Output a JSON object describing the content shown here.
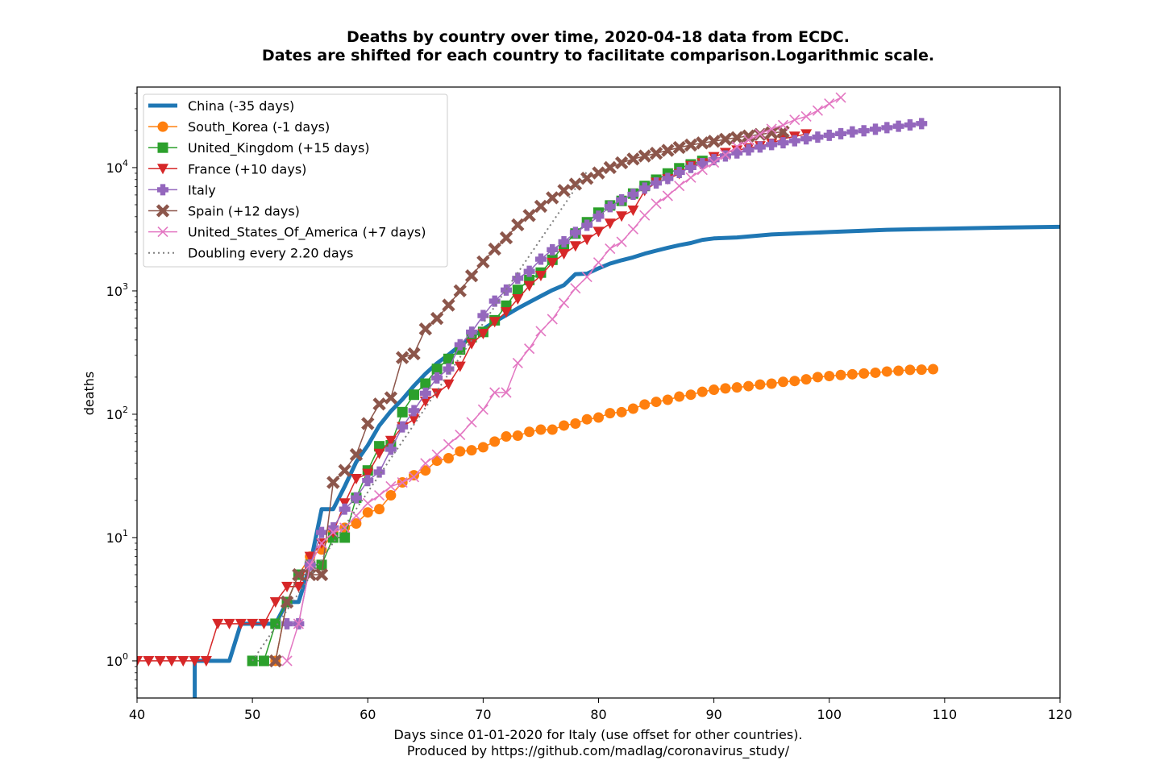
{
  "chart_data": {
    "type": "line",
    "title": "Deaths by country over time, 2020-04-18 data from ECDC.",
    "subtitle": "Dates are shifted for each country to facilitate comparison.Logarithmic scale.",
    "xlabel": "Days since 01-01-2020 for Italy (use offset for other countries).",
    "xlabel2": "Produced by https://github.com/madlag/coronavirus_study/",
    "ylabel": "deaths",
    "xlim": [
      40,
      120
    ],
    "ylim": [
      0.5,
      45000
    ],
    "yscale": "log",
    "grid": false,
    "legend_position": "top-left",
    "x_ticks": [
      "40",
      "50",
      "60",
      "70",
      "80",
      "90",
      "100",
      "110",
      "120"
    ],
    "y_ticks": [
      {
        "base": "10",
        "exp": "0"
      },
      {
        "base": "10",
        "exp": "1"
      },
      {
        "base": "10",
        "exp": "2"
      },
      {
        "base": "10",
        "exp": "3"
      },
      {
        "base": "10",
        "exp": "4"
      }
    ],
    "series": [
      {
        "name": "China (-35 days)",
        "color": "#1f77b4",
        "marker": "none",
        "width": 5,
        "x": [
          45,
          45,
          46,
          47,
          48,
          49,
          50,
          51,
          52,
          53,
          54,
          55,
          56,
          57,
          58,
          59,
          60,
          61,
          62,
          63,
          64,
          65,
          66,
          67,
          68,
          69,
          70,
          71,
          72,
          73,
          74,
          75,
          76,
          77,
          78,
          79,
          80,
          81,
          82,
          83,
          84,
          85,
          86,
          87,
          88,
          89,
          90,
          92,
          95,
          100,
          105,
          110,
          115,
          120
        ],
        "y": [
          0.5,
          1,
          1,
          1,
          1,
          2,
          2,
          2,
          2,
          3,
          3,
          6,
          17,
          17,
          26,
          41,
          56,
          81,
          106,
          132,
          170,
          213,
          259,
          304,
          361,
          425,
          490,
          563,
          636,
          722,
          811,
          908,
          1016,
          1113,
          1368,
          1381,
          1524,
          1666,
          1772,
          1870,
          2006,
          2121,
          2239,
          2348,
          2445,
          2595,
          2665,
          2715,
          2870,
          3000,
          3130,
          3200,
          3260,
          3310
        ]
      },
      {
        "name": "South_Korea (-1 days)",
        "color": "#ff7f0e",
        "marker": "circle",
        "width": 1.5,
        "x": [
          52,
          53,
          54,
          55,
          56,
          57,
          58,
          59,
          60,
          61,
          62,
          63,
          64,
          65,
          66,
          67,
          68,
          69,
          70,
          71,
          72,
          73,
          74,
          75,
          76,
          77,
          78,
          79,
          80,
          81,
          82,
          83,
          84,
          85,
          86,
          87,
          88,
          89,
          90,
          91,
          92,
          93,
          94,
          95,
          96,
          97,
          98,
          99,
          100,
          101,
          102,
          103,
          104,
          105,
          106,
          107,
          108,
          109
        ],
        "y": [
          1,
          3,
          5,
          7,
          8,
          11,
          12,
          13,
          16,
          17,
          22,
          28,
          32,
          35,
          42,
          44,
          50,
          51,
          54,
          60,
          66,
          67,
          72,
          75,
          75,
          81,
          84,
          91,
          94,
          102,
          104,
          111,
          120,
          126,
          131,
          139,
          144,
          152,
          158,
          162,
          165,
          169,
          174,
          177,
          183,
          186,
          192,
          200,
          204,
          208,
          211,
          214,
          217,
          222,
          225,
          229,
          230,
          232
        ]
      },
      {
        "name": "United_Kingdom (+15 days)",
        "color": "#2ca02c",
        "marker": "square",
        "width": 1.5,
        "x": [
          50,
          51,
          52,
          53,
          54,
          55,
          56,
          57,
          58,
          59,
          60,
          61,
          62,
          63,
          64,
          65,
          66,
          67,
          68,
          69,
          70,
          71,
          72,
          73,
          74,
          75,
          76,
          77,
          78,
          79,
          80,
          81,
          82,
          83,
          84,
          85,
          86,
          87,
          88,
          89
        ],
        "y": [
          1,
          1,
          2,
          3,
          5,
          6,
          6,
          10,
          10,
          21,
          35,
          55,
          56,
          104,
          144,
          177,
          233,
          281,
          335,
          422,
          465,
          578,
          759,
          1019,
          1228,
          1408,
          1789,
          2352,
          2921,
          3605,
          4313,
          4934,
          5373,
          6159,
          7097,
          7978,
          8958,
          9875,
          10612,
          11329
        ]
      },
      {
        "name": "France (+10 days)",
        "color": "#d62728",
        "marker": "triangle-down",
        "width": 1.5,
        "x": [
          40,
          41,
          42,
          43,
          44,
          45,
          46,
          47,
          48,
          49,
          50,
          51,
          52,
          53,
          54,
          55,
          56,
          57,
          58,
          59,
          60,
          61,
          62,
          63,
          64,
          65,
          66,
          67,
          68,
          69,
          70,
          71,
          72,
          73,
          74,
          75,
          76,
          77,
          78,
          79,
          80,
          81,
          82,
          83,
          84,
          85,
          86,
          87,
          88,
          89,
          90,
          91,
          92,
          93,
          94,
          95,
          96,
          97,
          98
        ],
        "y": [
          1,
          1,
          1,
          1,
          1,
          1,
          1,
          2,
          2,
          2,
          2,
          2,
          3,
          4,
          4,
          7,
          9,
          11,
          19,
          30,
          33,
          48,
          61,
          79,
          91,
          127,
          148,
          175,
          244,
          372,
          450,
          562,
          674,
          860,
          1100,
          1331,
          1696,
          1995,
          2314,
          2606,
          3024,
          3523,
          4032,
          4503,
          6507,
          7560,
          8078,
          8911,
          10328,
          10869,
          12210,
          13197,
          13832,
          14393,
          14967,
          15712,
          17148,
          17901,
          18681
        ]
      },
      {
        "name": "Italy",
        "color": "#9467bd",
        "marker": "plus",
        "width": 1.5,
        "x": [
          53,
          54,
          55,
          56,
          57,
          58,
          59,
          60,
          61,
          62,
          63,
          64,
          65,
          66,
          67,
          68,
          69,
          70,
          71,
          72,
          73,
          74,
          75,
          76,
          77,
          78,
          79,
          80,
          81,
          82,
          83,
          84,
          85,
          86,
          87,
          88,
          89,
          90,
          91,
          92,
          93,
          94,
          95,
          96,
          97,
          98,
          99,
          100,
          101,
          102,
          103,
          104,
          105,
          106,
          107,
          108
        ],
        "y": [
          2,
          2,
          6,
          11,
          12,
          17,
          21,
          29,
          34,
          52,
          79,
          107,
          148,
          197,
          233,
          366,
          463,
          631,
          827,
          1016,
          1266,
          1441,
          1809,
          2158,
          2503,
          2978,
          3405,
          4032,
          4825,
          5476,
          6077,
          6820,
          7503,
          8165,
          9134,
          10023,
          10779,
          11591,
          12428,
          13155,
          13915,
          14681,
          15362,
          15887,
          16523,
          17127,
          17669,
          18279,
          18849,
          19468,
          19899,
          20465,
          21067,
          21645,
          22170,
          22745
        ]
      },
      {
        "name": "Spain (+12 days)",
        "color": "#8c564b",
        "marker": "x-thick",
        "width": 1.5,
        "x": [
          52,
          53,
          54,
          55,
          56,
          57,
          58,
          59,
          60,
          61,
          62,
          63,
          64,
          65,
          66,
          67,
          68,
          69,
          70,
          71,
          72,
          73,
          74,
          75,
          76,
          77,
          78,
          79,
          80,
          81,
          82,
          83,
          84,
          85,
          86,
          87,
          88,
          89,
          90,
          91,
          92,
          93,
          94,
          95,
          96
        ],
        "y": [
          1,
          3,
          5,
          5,
          5,
          28,
          35,
          47,
          84,
          121,
          136,
          288,
          309,
          491,
          598,
          767,
          1002,
          1326,
          1720,
          2182,
          2696,
          3434,
          4089,
          4858,
          5690,
          6528,
          7340,
          8189,
          9053,
          10003,
          10935,
          11744,
          12418,
          13055,
          13798,
          14555,
          15238,
          15843,
          16353,
          16972,
          17489,
          18056,
          18579,
          19130,
          19478
        ]
      },
      {
        "name": "United_States_Of_America (+7 days)",
        "color": "#e377c2",
        "marker": "x-thin",
        "width": 1.5,
        "x": [
          53,
          54,
          55,
          56,
          57,
          58,
          59,
          60,
          61,
          62,
          63,
          64,
          65,
          66,
          67,
          68,
          69,
          70,
          71,
          72,
          73,
          74,
          75,
          76,
          77,
          78,
          79,
          80,
          81,
          82,
          83,
          84,
          85,
          86,
          87,
          88,
          89,
          90,
          91,
          92,
          93,
          94,
          95,
          96,
          97,
          98,
          99,
          100,
          101
        ],
        "y": [
          1,
          2,
          6,
          9,
          11,
          12,
          15,
          19,
          22,
          26,
          28,
          31,
          40,
          47,
          57,
          68,
          86,
          109,
          150,
          150,
          260,
          340,
          471,
          590,
          800,
          1050,
          1300,
          1700,
          2200,
          2500,
          3170,
          4100,
          5100,
          5900,
          7100,
          8300,
          9600,
          11000,
          12700,
          14800,
          16700,
          18700,
          20600,
          22100,
          24400,
          26000,
          29000,
          33000,
          37000
        ]
      },
      {
        "name": "Doubling every 2.20 days",
        "color": "#7f7f7f",
        "marker": "none",
        "width": 2,
        "dashed": true,
        "x": [
          50,
          79
        ],
        "y": [
          1,
          9300
        ]
      }
    ]
  }
}
